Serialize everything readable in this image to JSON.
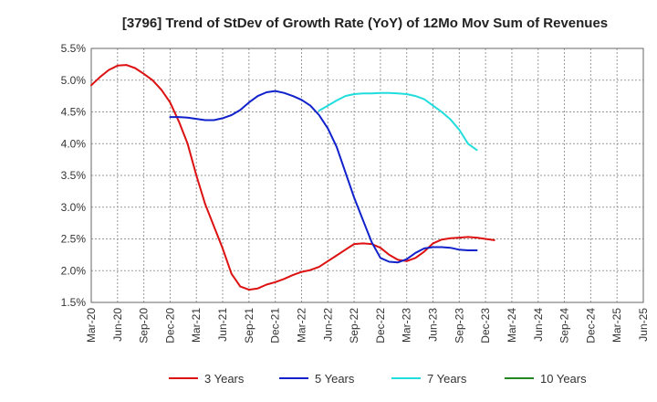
{
  "chart_data": {
    "type": "line",
    "title": "[3796]  Trend of StDev of Growth Rate (YoY) of 12Mo Mov Sum of Revenues",
    "xlabel": "",
    "ylabel": "",
    "ylim": [
      1.5,
      5.5
    ],
    "y_ticks": [
      "1.5%",
      "2.0%",
      "2.5%",
      "3.0%",
      "3.5%",
      "4.0%",
      "4.5%",
      "5.0%",
      "5.5%"
    ],
    "y_tick_values": [
      1.5,
      2.0,
      2.5,
      3.0,
      3.5,
      4.0,
      4.5,
      5.0,
      5.5
    ],
    "x_ticks": [
      "Mar-20",
      "Jun-20",
      "Sep-20",
      "Dec-20",
      "Mar-21",
      "Jun-21",
      "Sep-21",
      "Dec-21",
      "Mar-22",
      "Jun-22",
      "Sep-22",
      "Dec-22",
      "Mar-23",
      "Jun-23",
      "Sep-23",
      "Dec-23",
      "Mar-24",
      "Jun-24",
      "Sep-24",
      "Dec-24",
      "Mar-25",
      "Jun-25"
    ],
    "grid": true,
    "legend_position": "bottom",
    "series": [
      {
        "name": "3 Years",
        "color": "#dd1111",
        "points": [
          [
            0,
            4.92
          ],
          [
            1,
            5.05
          ],
          [
            2,
            5.16
          ],
          [
            3,
            5.23
          ],
          [
            4,
            5.24
          ],
          [
            5,
            5.19
          ],
          [
            6,
            5.1
          ],
          [
            7,
            5.0
          ],
          [
            8,
            4.85
          ],
          [
            9,
            4.65
          ],
          [
            10,
            4.35
          ],
          [
            11,
            4.0
          ],
          [
            12,
            3.5
          ],
          [
            13,
            3.05
          ],
          [
            14,
            2.7
          ],
          [
            15,
            2.35
          ],
          [
            16,
            1.95
          ],
          [
            17,
            1.75
          ],
          [
            18,
            1.7
          ],
          [
            19,
            1.72
          ],
          [
            20,
            1.78
          ],
          [
            21,
            1.82
          ],
          [
            22,
            1.87
          ],
          [
            23,
            1.93
          ],
          [
            24,
            1.98
          ],
          [
            25,
            2.01
          ],
          [
            26,
            2.06
          ],
          [
            27,
            2.15
          ],
          [
            28,
            2.24
          ],
          [
            29,
            2.33
          ],
          [
            30,
            2.42
          ],
          [
            31,
            2.43
          ],
          [
            32,
            2.42
          ],
          [
            33,
            2.36
          ],
          [
            34,
            2.25
          ],
          [
            35,
            2.17
          ],
          [
            36,
            2.15
          ],
          [
            37,
            2.2
          ],
          [
            38,
            2.3
          ],
          [
            39,
            2.43
          ],
          [
            40,
            2.49
          ],
          [
            41,
            2.51
          ],
          [
            42,
            2.52
          ],
          [
            43,
            2.53
          ],
          [
            44,
            2.52
          ],
          [
            45,
            2.5
          ],
          [
            46,
            2.48
          ]
        ]
      },
      {
        "name": "5 Years",
        "color": "#1122cc",
        "points": [
          [
            9,
            4.42
          ],
          [
            10,
            4.42
          ],
          [
            11,
            4.41
          ],
          [
            12,
            4.39
          ],
          [
            13,
            4.37
          ],
          [
            14,
            4.37
          ],
          [
            15,
            4.4
          ],
          [
            16,
            4.45
          ],
          [
            17,
            4.53
          ],
          [
            18,
            4.65
          ],
          [
            19,
            4.75
          ],
          [
            20,
            4.81
          ],
          [
            21,
            4.83
          ],
          [
            22,
            4.8
          ],
          [
            23,
            4.75
          ],
          [
            24,
            4.69
          ],
          [
            25,
            4.6
          ],
          [
            26,
            4.45
          ],
          [
            27,
            4.24
          ],
          [
            28,
            3.95
          ],
          [
            29,
            3.55
          ],
          [
            30,
            3.15
          ],
          [
            31,
            2.8
          ],
          [
            32,
            2.45
          ],
          [
            33,
            2.2
          ],
          [
            34,
            2.14
          ],
          [
            35,
            2.13
          ],
          [
            36,
            2.18
          ],
          [
            37,
            2.28
          ],
          [
            38,
            2.35
          ],
          [
            39,
            2.37
          ],
          [
            40,
            2.37
          ],
          [
            41,
            2.36
          ],
          [
            42,
            2.33
          ],
          [
            43,
            2.32
          ],
          [
            44,
            2.32
          ]
        ]
      },
      {
        "name": "7 Years",
        "color": "#22dddd",
        "points": [
          [
            26,
            4.52
          ],
          [
            27,
            4.6
          ],
          [
            28,
            4.68
          ],
          [
            29,
            4.75
          ],
          [
            30,
            4.78
          ],
          [
            31,
            4.79
          ],
          [
            32,
            4.79
          ],
          [
            33,
            4.8
          ],
          [
            34,
            4.8
          ],
          [
            35,
            4.79
          ],
          [
            36,
            4.78
          ],
          [
            37,
            4.75
          ],
          [
            38,
            4.7
          ],
          [
            39,
            4.6
          ],
          [
            40,
            4.5
          ],
          [
            41,
            4.38
          ],
          [
            42,
            4.22
          ],
          [
            43,
            4.0
          ],
          [
            44,
            3.9
          ]
        ]
      },
      {
        "name": "10 Years",
        "color": "#228822",
        "points": []
      }
    ]
  }
}
